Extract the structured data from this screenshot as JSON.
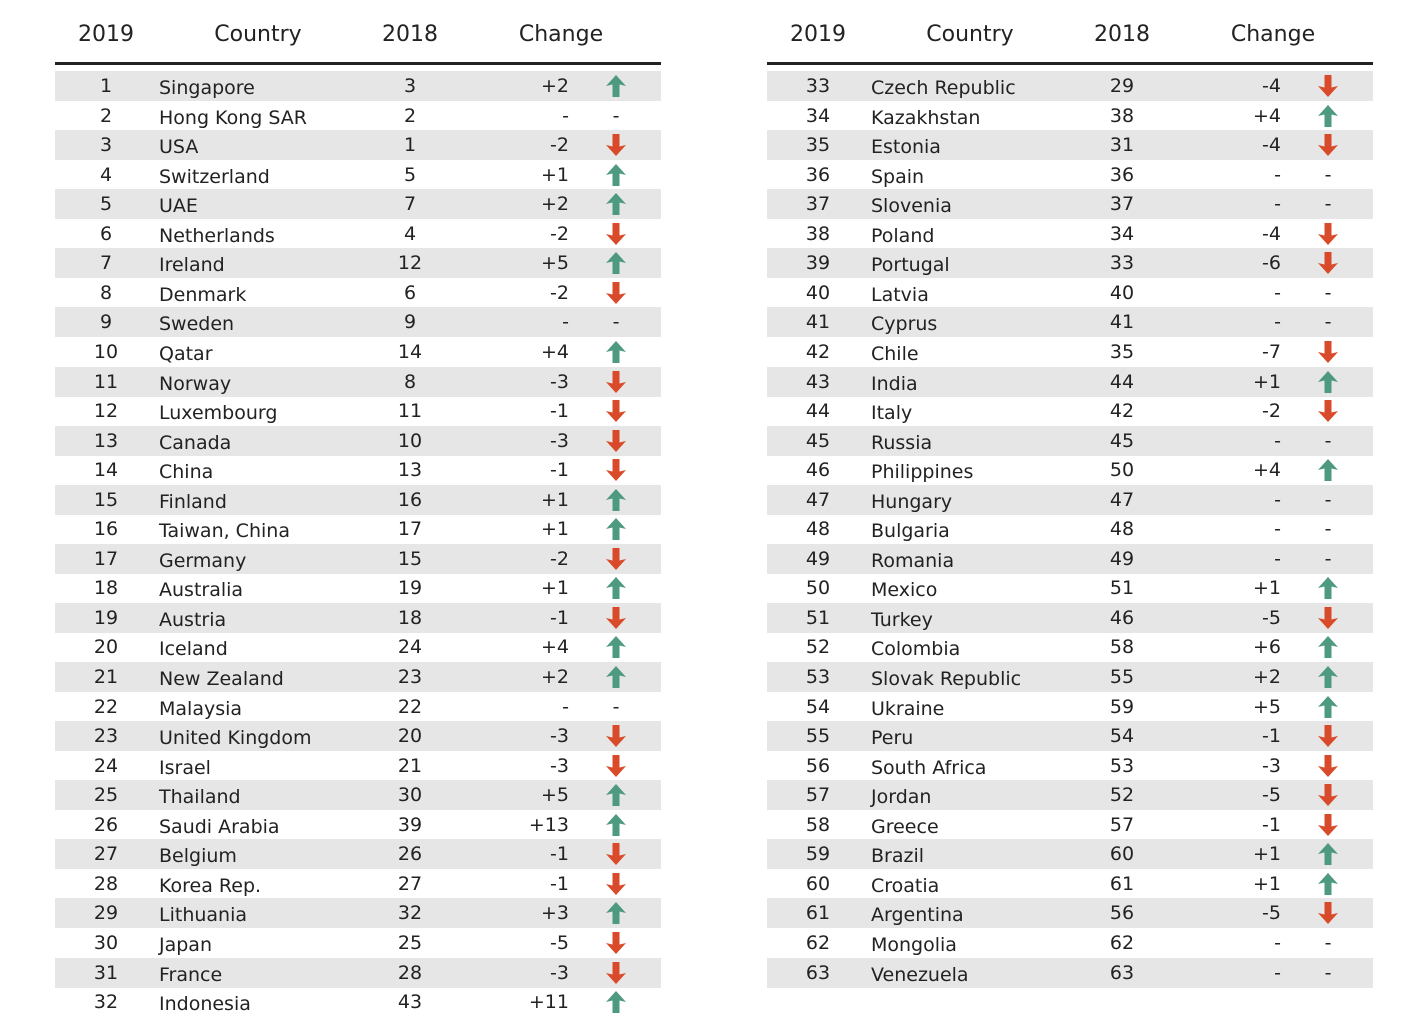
{
  "tables": [
    {
      "header": [
        "2019",
        "Country",
        "2018",
        "Change"
      ],
      "rows": [
        [
          1,
          "Singapore",
          3,
          "+2"
        ],
        [
          2,
          "Hong Kong SAR",
          2,
          "-"
        ],
        [
          3,
          "USA",
          1,
          "-2"
        ],
        [
          4,
          "Switzerland",
          5,
          "+1"
        ],
        [
          5,
          "UAE",
          7,
          "+2"
        ],
        [
          6,
          "Netherlands",
          4,
          "-2"
        ],
        [
          7,
          "Ireland",
          12,
          "+5"
        ],
        [
          8,
          "Denmark",
          6,
          "-2"
        ],
        [
          9,
          "Sweden",
          9,
          "-"
        ],
        [
          10,
          "Qatar",
          14,
          "+4"
        ],
        [
          11,
          "Norway",
          8,
          "-3"
        ],
        [
          12,
          "Luxembourg",
          11,
          "-1"
        ],
        [
          13,
          "Canada",
          10,
          "-3"
        ],
        [
          14,
          "China",
          13,
          "-1"
        ],
        [
          15,
          "Finland",
          16,
          "+1"
        ],
        [
          16,
          "Taiwan, China",
          17,
          "+1"
        ],
        [
          17,
          "Germany",
          15,
          "-2"
        ],
        [
          18,
          "Australia",
          19,
          "+1"
        ],
        [
          19,
          "Austria",
          18,
          "-1"
        ],
        [
          20,
          "Iceland",
          24,
          "+4"
        ],
        [
          21,
          "New Zealand",
          23,
          "+2"
        ],
        [
          22,
          "Malaysia",
          22,
          "-"
        ],
        [
          23,
          "United Kingdom",
          20,
          "-3"
        ],
        [
          24,
          "Israel",
          21,
          "-3"
        ],
        [
          25,
          "Thailand",
          30,
          "+5"
        ],
        [
          26,
          "Saudi Arabia",
          39,
          "+13"
        ],
        [
          27,
          "Belgium",
          26,
          "-1"
        ],
        [
          28,
          "Korea Rep.",
          27,
          "-1"
        ],
        [
          29,
          "Lithuania",
          32,
          "+3"
        ],
        [
          30,
          "Japan",
          25,
          "-5"
        ],
        [
          31,
          "France",
          28,
          "-3"
        ],
        [
          32,
          "Indonesia",
          43,
          "+11"
        ]
      ]
    },
    {
      "header": [
        "2019",
        "Country",
        "2018",
        "Change"
      ],
      "rows": [
        [
          33,
          "Czech Republic",
          29,
          "-4"
        ],
        [
          34,
          "Kazakhstan",
          38,
          "+4"
        ],
        [
          35,
          "Estonia",
          31,
          "-4"
        ],
        [
          36,
          "Spain",
          36,
          "-"
        ],
        [
          37,
          "Slovenia",
          37,
          "-"
        ],
        [
          38,
          "Poland",
          34,
          "-4"
        ],
        [
          39,
          "Portugal",
          33,
          "-6"
        ],
        [
          40,
          "Latvia",
          40,
          "-"
        ],
        [
          41,
          "Cyprus",
          41,
          "-"
        ],
        [
          42,
          "Chile",
          35,
          "-7"
        ],
        [
          43,
          "India",
          44,
          "+1"
        ],
        [
          44,
          "Italy",
          42,
          "-2"
        ],
        [
          45,
          "Russia",
          45,
          "-"
        ],
        [
          46,
          "Philippines",
          50,
          "+4"
        ],
        [
          47,
          "Hungary",
          47,
          "-"
        ],
        [
          48,
          "Bulgaria",
          48,
          "-"
        ],
        [
          49,
          "Romania",
          49,
          "-"
        ],
        [
          50,
          "Mexico",
          51,
          "+1"
        ],
        [
          51,
          "Turkey",
          46,
          "-5"
        ],
        [
          52,
          "Colombia",
          58,
          "+6"
        ],
        [
          53,
          "Slovak Republic",
          55,
          "+2"
        ],
        [
          54,
          "Ukraine",
          59,
          "+5"
        ],
        [
          55,
          "Peru",
          54,
          "-1"
        ],
        [
          56,
          "South Africa",
          53,
          "-3"
        ],
        [
          57,
          "Jordan",
          52,
          "-5"
        ],
        [
          58,
          "Greece",
          57,
          "-1"
        ],
        [
          59,
          "Brazil",
          60,
          "+1"
        ],
        [
          60,
          "Croatia",
          61,
          "+1"
        ],
        [
          61,
          "Argentina",
          56,
          "-5"
        ],
        [
          62,
          "Mongolia",
          62,
          "-"
        ],
        [
          63,
          "Venezuela",
          63,
          "-"
        ]
      ]
    }
  ]
}
